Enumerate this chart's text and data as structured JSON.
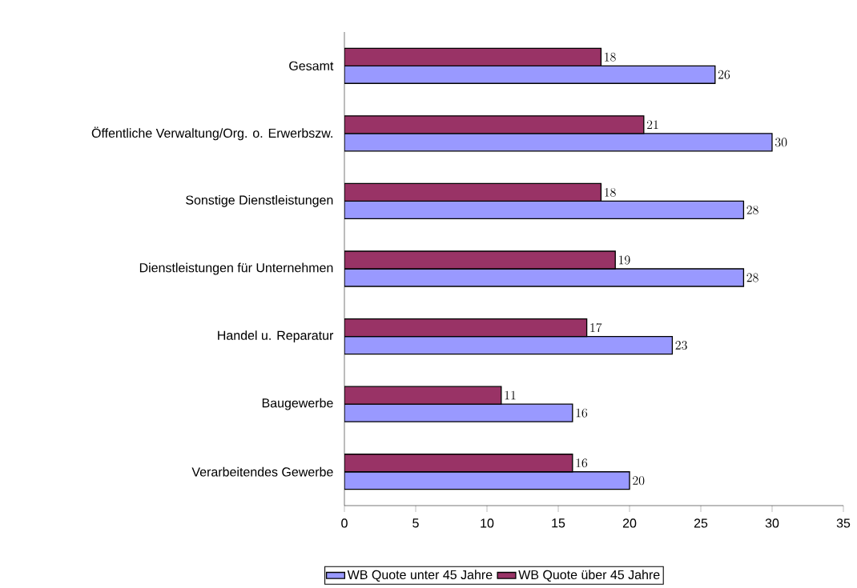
{
  "chart_data": {
    "type": "bar",
    "orientation": "horizontal",
    "categories": [
      "Gesamt",
      "Öffentliche Verwaltung/Org. o. Erwerbszw.",
      "Sonstige Dienstleistungen",
      "Dienstleistungen für Unternehmen",
      "Handel u. Reparatur",
      "Baugewerbe",
      "Verarbeitendes Gewerbe"
    ],
    "series": [
      {
        "name": "WB Quote unter 45 Jahre",
        "color": "#9999ff",
        "values": [
          26,
          30,
          28,
          28,
          23,
          16,
          20
        ]
      },
      {
        "name": "WB Quote über 45 Jahre",
        "color": "#993366",
        "values": [
          18,
          21,
          18,
          19,
          17,
          11,
          16
        ]
      }
    ],
    "xlim": [
      0,
      35
    ],
    "xticks": [
      0,
      5,
      10,
      15,
      20,
      25,
      30,
      35
    ],
    "data_labels": true,
    "legend": "bottom"
  }
}
